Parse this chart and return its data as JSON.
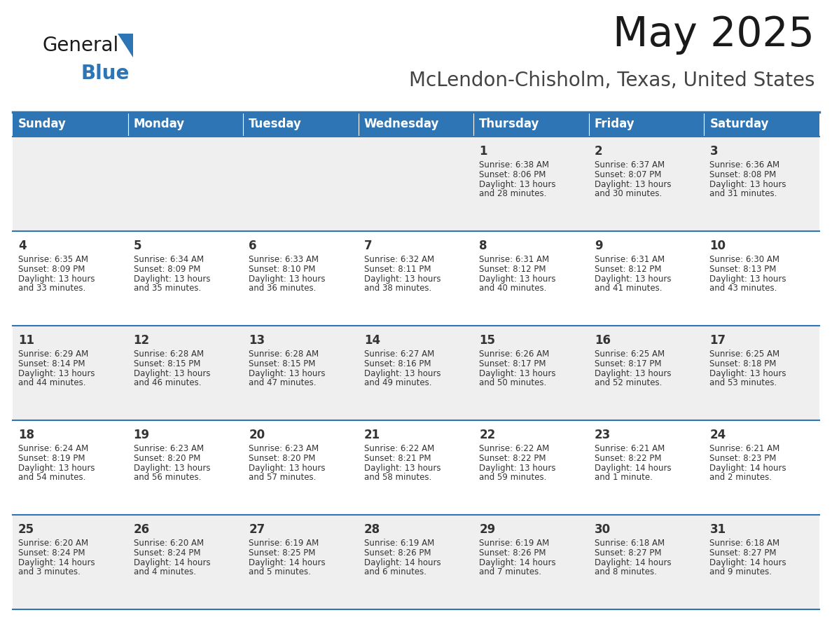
{
  "title": "May 2025",
  "subtitle": "McLendon-Chisholm, Texas, United States",
  "header_bg": "#2E75B6",
  "header_text_color": "#FFFFFF",
  "day_names": [
    "Sunday",
    "Monday",
    "Tuesday",
    "Wednesday",
    "Thursday",
    "Friday",
    "Saturday"
  ],
  "bg_color": "#FFFFFF",
  "cell_bg_odd": "#EFEFEF",
  "cell_bg_even": "#FFFFFF",
  "border_color": "#2E75B6",
  "text_color": "#333333",
  "days": [
    {
      "day": 1,
      "col": 4,
      "row": 0,
      "sunrise": "6:38 AM",
      "sunset": "8:06 PM",
      "daylight": "13 hours and 28 minutes."
    },
    {
      "day": 2,
      "col": 5,
      "row": 0,
      "sunrise": "6:37 AM",
      "sunset": "8:07 PM",
      "daylight": "13 hours and 30 minutes."
    },
    {
      "day": 3,
      "col": 6,
      "row": 0,
      "sunrise": "6:36 AM",
      "sunset": "8:08 PM",
      "daylight": "13 hours and 31 minutes."
    },
    {
      "day": 4,
      "col": 0,
      "row": 1,
      "sunrise": "6:35 AM",
      "sunset": "8:09 PM",
      "daylight": "13 hours and 33 minutes."
    },
    {
      "day": 5,
      "col": 1,
      "row": 1,
      "sunrise": "6:34 AM",
      "sunset": "8:09 PM",
      "daylight": "13 hours and 35 minutes."
    },
    {
      "day": 6,
      "col": 2,
      "row": 1,
      "sunrise": "6:33 AM",
      "sunset": "8:10 PM",
      "daylight": "13 hours and 36 minutes."
    },
    {
      "day": 7,
      "col": 3,
      "row": 1,
      "sunrise": "6:32 AM",
      "sunset": "8:11 PM",
      "daylight": "13 hours and 38 minutes."
    },
    {
      "day": 8,
      "col": 4,
      "row": 1,
      "sunrise": "6:31 AM",
      "sunset": "8:12 PM",
      "daylight": "13 hours and 40 minutes."
    },
    {
      "day": 9,
      "col": 5,
      "row": 1,
      "sunrise": "6:31 AM",
      "sunset": "8:12 PM",
      "daylight": "13 hours and 41 minutes."
    },
    {
      "day": 10,
      "col": 6,
      "row": 1,
      "sunrise": "6:30 AM",
      "sunset": "8:13 PM",
      "daylight": "13 hours and 43 minutes."
    },
    {
      "day": 11,
      "col": 0,
      "row": 2,
      "sunrise": "6:29 AM",
      "sunset": "8:14 PM",
      "daylight": "13 hours and 44 minutes."
    },
    {
      "day": 12,
      "col": 1,
      "row": 2,
      "sunrise": "6:28 AM",
      "sunset": "8:15 PM",
      "daylight": "13 hours and 46 minutes."
    },
    {
      "day": 13,
      "col": 2,
      "row": 2,
      "sunrise": "6:28 AM",
      "sunset": "8:15 PM",
      "daylight": "13 hours and 47 minutes."
    },
    {
      "day": 14,
      "col": 3,
      "row": 2,
      "sunrise": "6:27 AM",
      "sunset": "8:16 PM",
      "daylight": "13 hours and 49 minutes."
    },
    {
      "day": 15,
      "col": 4,
      "row": 2,
      "sunrise": "6:26 AM",
      "sunset": "8:17 PM",
      "daylight": "13 hours and 50 minutes."
    },
    {
      "day": 16,
      "col": 5,
      "row": 2,
      "sunrise": "6:25 AM",
      "sunset": "8:17 PM",
      "daylight": "13 hours and 52 minutes."
    },
    {
      "day": 17,
      "col": 6,
      "row": 2,
      "sunrise": "6:25 AM",
      "sunset": "8:18 PM",
      "daylight": "13 hours and 53 minutes."
    },
    {
      "day": 18,
      "col": 0,
      "row": 3,
      "sunrise": "6:24 AM",
      "sunset": "8:19 PM",
      "daylight": "13 hours and 54 minutes."
    },
    {
      "day": 19,
      "col": 1,
      "row": 3,
      "sunrise": "6:23 AM",
      "sunset": "8:20 PM",
      "daylight": "13 hours and 56 minutes."
    },
    {
      "day": 20,
      "col": 2,
      "row": 3,
      "sunrise": "6:23 AM",
      "sunset": "8:20 PM",
      "daylight": "13 hours and 57 minutes."
    },
    {
      "day": 21,
      "col": 3,
      "row": 3,
      "sunrise": "6:22 AM",
      "sunset": "8:21 PM",
      "daylight": "13 hours and 58 minutes."
    },
    {
      "day": 22,
      "col": 4,
      "row": 3,
      "sunrise": "6:22 AM",
      "sunset": "8:22 PM",
      "daylight": "13 hours and 59 minutes."
    },
    {
      "day": 23,
      "col": 5,
      "row": 3,
      "sunrise": "6:21 AM",
      "sunset": "8:22 PM",
      "daylight": "14 hours and 1 minute."
    },
    {
      "day": 24,
      "col": 6,
      "row": 3,
      "sunrise": "6:21 AM",
      "sunset": "8:23 PM",
      "daylight": "14 hours and 2 minutes."
    },
    {
      "day": 25,
      "col": 0,
      "row": 4,
      "sunrise": "6:20 AM",
      "sunset": "8:24 PM",
      "daylight": "14 hours and 3 minutes."
    },
    {
      "day": 26,
      "col": 1,
      "row": 4,
      "sunrise": "6:20 AM",
      "sunset": "8:24 PM",
      "daylight": "14 hours and 4 minutes."
    },
    {
      "day": 27,
      "col": 2,
      "row": 4,
      "sunrise": "6:19 AM",
      "sunset": "8:25 PM",
      "daylight": "14 hours and 5 minutes."
    },
    {
      "day": 28,
      "col": 3,
      "row": 4,
      "sunrise": "6:19 AM",
      "sunset": "8:26 PM",
      "daylight": "14 hours and 6 minutes."
    },
    {
      "day": 29,
      "col": 4,
      "row": 4,
      "sunrise": "6:19 AM",
      "sunset": "8:26 PM",
      "daylight": "14 hours and 7 minutes."
    },
    {
      "day": 30,
      "col": 5,
      "row": 4,
      "sunrise": "6:18 AM",
      "sunset": "8:27 PM",
      "daylight": "14 hours and 8 minutes."
    },
    {
      "day": 31,
      "col": 6,
      "row": 4,
      "sunrise": "6:18 AM",
      "sunset": "8:27 PM",
      "daylight": "14 hours and 9 minutes."
    }
  ],
  "num_rows": 5,
  "logo_text1": "General",
  "logo_text2": "Blue",
  "logo_color1": "#1a1a1a",
  "logo_color2": "#2E75B6",
  "title_fontsize": 42,
  "subtitle_fontsize": 20,
  "header_fontsize": 12,
  "day_num_fontsize": 12,
  "cell_fontsize": 8.5
}
